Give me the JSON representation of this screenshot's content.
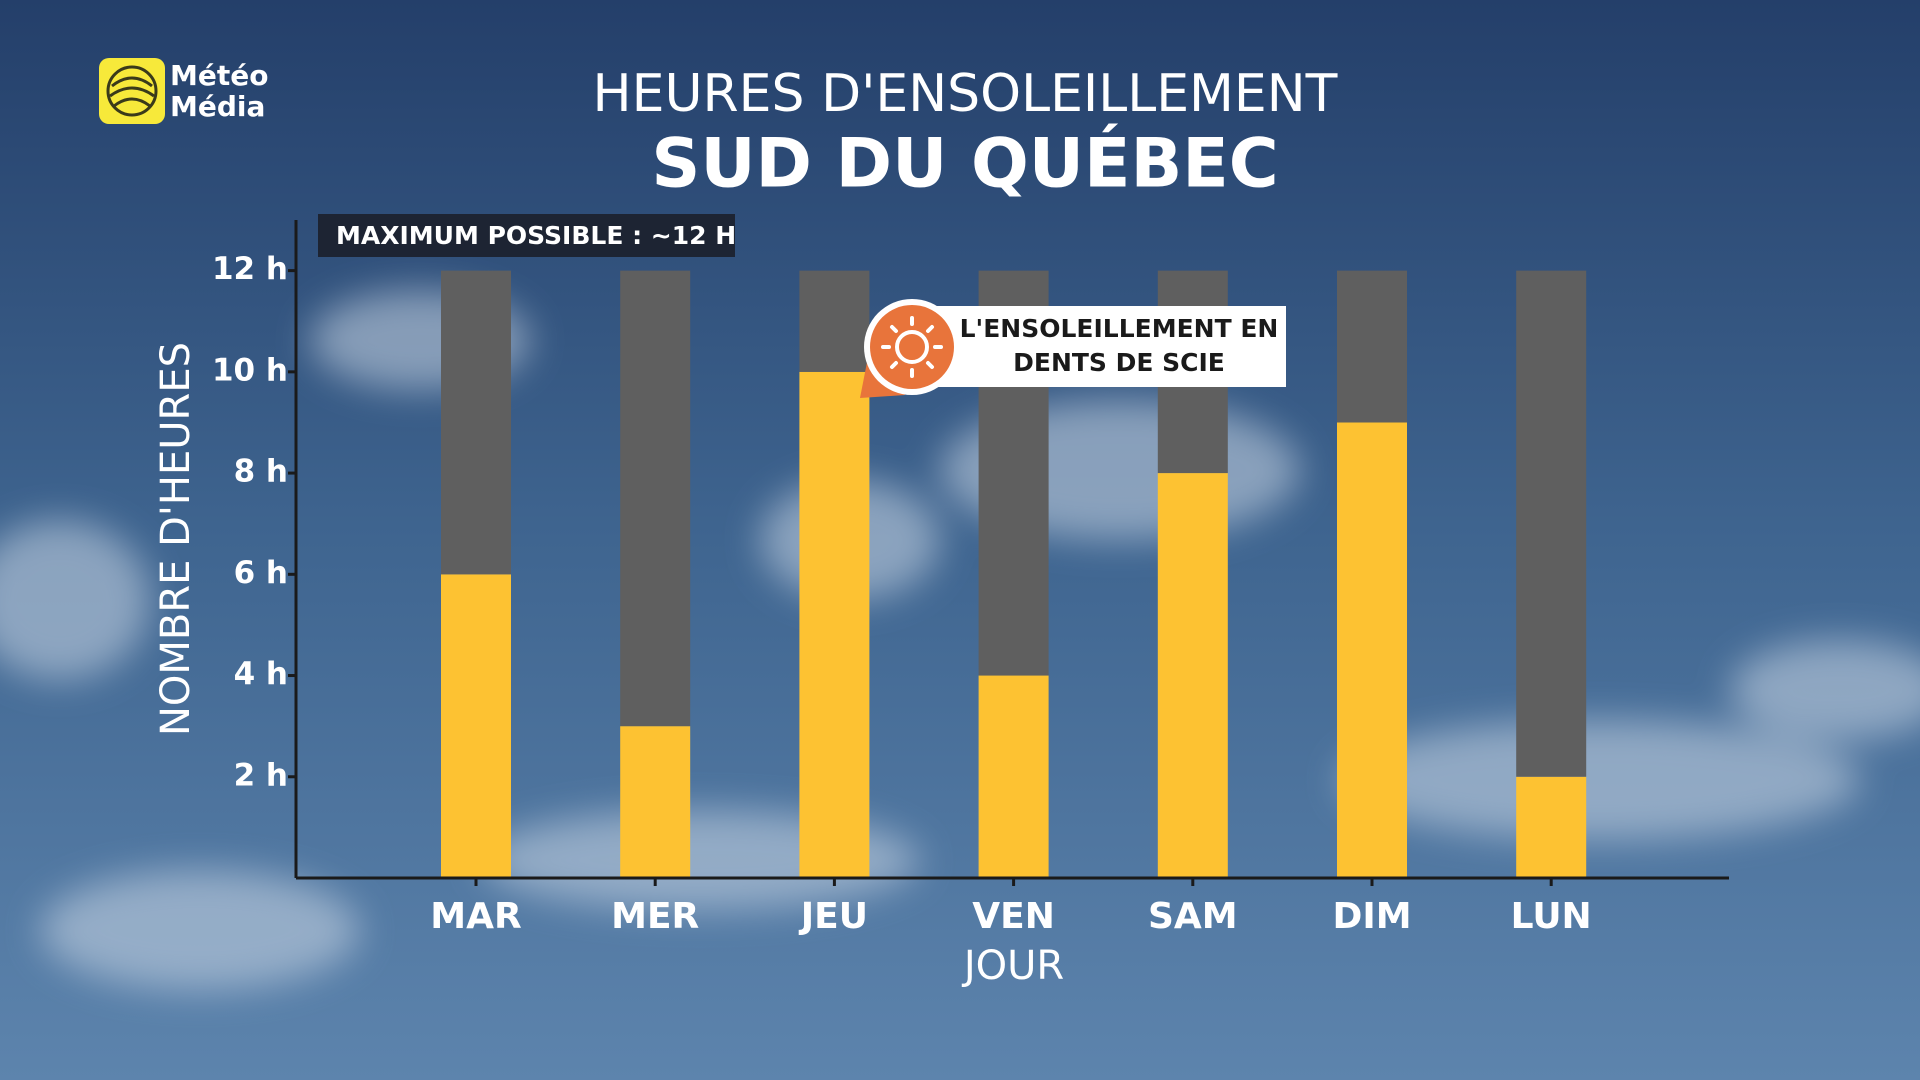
{
  "logo": [
    "Météo",
    "Média"
  ],
  "chart_data": {
    "type": "stacked-bar",
    "title": "HEURES D'ENSOLEILLEMENT",
    "subtitle": "SUD DU QUÉBEC",
    "ylabel": "NOMBRE D'HEURES",
    "xlabel": "JOUR",
    "annotation": "MAXIMUM POSSIBLE : ~12 H",
    "callout": [
      "L'ENSOLEILLEMENT EN",
      "DENTS DE SCIE"
    ],
    "categories": [
      "MAR",
      "MER",
      "JEU",
      "VEN",
      "SAM",
      "DIM",
      "LUN"
    ],
    "series": [
      {
        "color": "#fdc232",
        "values": [
          6,
          3,
          10,
          4,
          8,
          9,
          2
        ]
      },
      {
        "color": "#5f5f5f",
        "values": [
          6,
          9,
          2,
          8,
          4,
          3,
          10
        ]
      }
    ],
    "ylim": [
      0,
      13
    ],
    "yticks": [
      {
        "value": 2,
        "label": "2 h"
      },
      {
        "value": 4,
        "label": "4 h"
      },
      {
        "value": 6,
        "label": "6 h"
      },
      {
        "value": 8,
        "label": "8 h"
      },
      {
        "value": 10,
        "label": "10 h"
      },
      {
        "value": 12,
        "label": "12 h"
      }
    ],
    "grid": false
  }
}
